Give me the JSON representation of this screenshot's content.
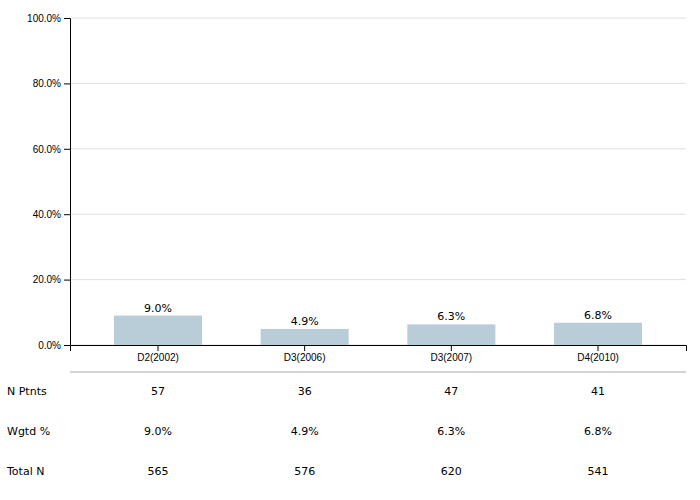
{
  "chart_data": {
    "type": "bar",
    "categories": [
      "D2(2002)",
      "D3(2006)",
      "D3(2007)",
      "D4(2010)"
    ],
    "values": [
      9.0,
      4.9,
      6.3,
      6.8
    ],
    "value_labels": [
      "9.0%",
      "4.9%",
      "6.3%",
      "6.8%"
    ],
    "data_labels": true,
    "color": "#b8cdd8",
    "ylim": [
      0,
      100
    ],
    "yticks": [
      {
        "value": 0,
        "label": "0.0%"
      },
      {
        "value": 20,
        "label": "20.0%"
      },
      {
        "value": 40,
        "label": "40.0%"
      },
      {
        "value": 60,
        "label": "60.0%"
      },
      {
        "value": 80,
        "label": "80.0%"
      },
      {
        "value": 100,
        "label": "100.0%"
      }
    ],
    "grid": true,
    "table": [
      {
        "label": "N Ptnts",
        "values": [
          57,
          36,
          47,
          41
        ]
      },
      {
        "label": "Wgtd %",
        "values": [
          9.0,
          4.9,
          6.3,
          6.8
        ],
        "value_labels": [
          "9.0%",
          "4.9%",
          "6.3%",
          "6.8%"
        ]
      },
      {
        "label": "Total N",
        "values": [
          565,
          576,
          620,
          541
        ]
      }
    ]
  }
}
